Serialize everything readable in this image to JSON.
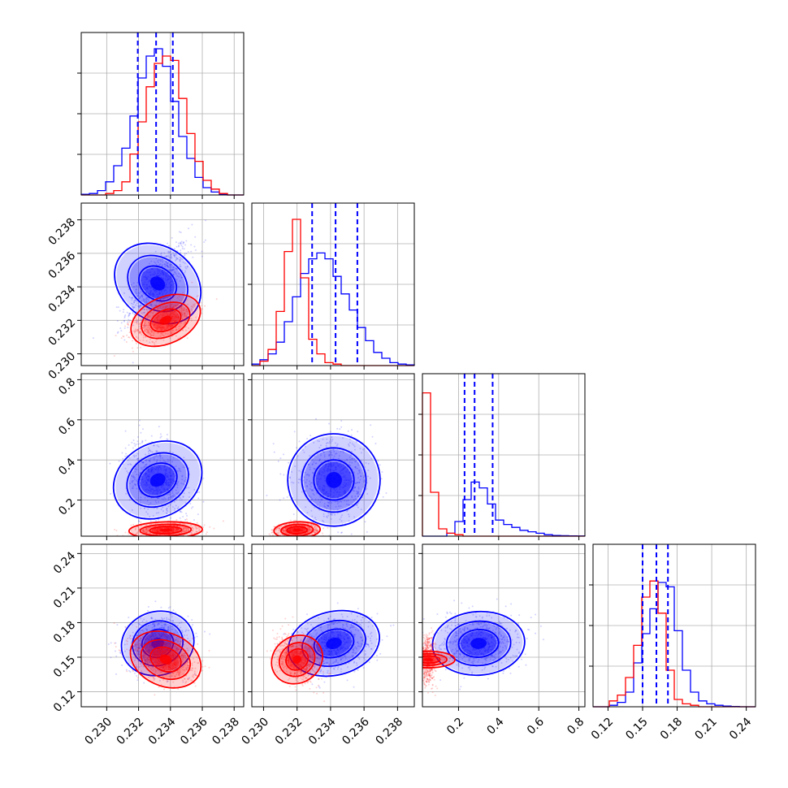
{
  "chart_data": {
    "type": "corner",
    "colors": {
      "series_a": "#0000ff",
      "series_b": "#ff0000"
    },
    "grid": true,
    "parameters": [
      {
        "ticks": [
          0.23,
          0.232,
          0.234,
          0.236,
          0.238
        ],
        "tick_labels": [
          "0.230",
          "0.232",
          "0.234",
          "0.236",
          "0.238"
        ],
        "range": [
          0.2284,
          0.2386
        ]
      },
      {
        "ticks": [
          0.23,
          0.232,
          0.234,
          0.236,
          0.238
        ],
        "tick_labels": [
          "0.230",
          "0.232",
          "0.234",
          "0.236",
          "0.238"
        ],
        "range": [
          0.2293,
          0.239
        ]
      },
      {
        "ticks": [
          0.2,
          0.4,
          0.6,
          0.8
        ],
        "tick_labels": [
          "0.2",
          "0.4",
          "0.6",
          "0.8"
        ],
        "range": [
          0.02,
          0.83
        ]
      },
      {
        "ticks": [
          0.12,
          0.15,
          0.18,
          0.21,
          0.24
        ],
        "tick_labels": [
          "0.12",
          "0.15",
          "0.18",
          "0.21",
          "0.24"
        ],
        "range": [
          0.107,
          0.248
        ]
      }
    ],
    "quantiles_series_a": [
      [
        0.23195,
        0.2331,
        0.23415
      ],
      [
        0.2329,
        0.2343,
        0.2356
      ],
      [
        0.23,
        0.28,
        0.37
      ],
      [
        0.15,
        0.162,
        0.172
      ]
    ],
    "series": [
      {
        "color": "blue",
        "marginals": [
          [
            0.005,
            0.01,
            0.03,
            0.09,
            0.2,
            0.32,
            0.54,
            0.8,
            0.95,
            1.0,
            0.88,
            0.64,
            0.4,
            0.25,
            0.12,
            0.05,
            0.02,
            0.005,
            0.0,
            0.0
          ],
          [
            0.01,
            0.04,
            0.08,
            0.16,
            0.3,
            0.47,
            0.63,
            0.73,
            0.77,
            0.73,
            0.61,
            0.49,
            0.38,
            0.26,
            0.17,
            0.09,
            0.05,
            0.02,
            0.01,
            0.005
          ],
          [
            0.0,
            0.0,
            0.0,
            0.02,
            0.1,
            0.25,
            0.37,
            0.33,
            0.22,
            0.11,
            0.08,
            0.06,
            0.04,
            0.03,
            0.02,
            0.01,
            0.005,
            0.003,
            0.002,
            0.001
          ],
          [
            0.0,
            0.0,
            0.01,
            0.03,
            0.1,
            0.3,
            0.5,
            0.67,
            0.85,
            0.82,
            0.52,
            0.25,
            0.1,
            0.04,
            0.02,
            0.01,
            0.005,
            0.002,
            0.0,
            0.0
          ]
        ],
        "mean": [
          0.2332,
          0.2342,
          0.3,
          0.162
        ],
        "sd": [
          0.001,
          0.0012,
          0.1,
          0.012
        ],
        "corr": [
          [
            1,
            0.75,
            -0.35,
            0.1
          ],
          [
            0.75,
            1,
            -0.05,
            0.2
          ],
          [
            -0.35,
            -0.05,
            1,
            0.05
          ],
          [
            0.1,
            0.2,
            0.05,
            1
          ]
        ]
      },
      {
        "color": "red",
        "marginals": [
          [
            0.0,
            0.0,
            0.0,
            0.01,
            0.03,
            0.09,
            0.28,
            0.5,
            0.74,
            0.9,
            0.95,
            0.92,
            0.66,
            0.42,
            0.23,
            0.1,
            0.04,
            0.01,
            0.0,
            0.0
          ],
          [
            0.0,
            0.03,
            0.11,
            0.37,
            0.78,
            1.0,
            0.6,
            0.18,
            0.08,
            0.02,
            0.01,
            0.0,
            0.0,
            0.0,
            0.0,
            0.0,
            0.0,
            0.0,
            0.0,
            0.0
          ],
          [
            0.98,
            0.3,
            0.05,
            0.02,
            0.01,
            0.0,
            0.0,
            0.0,
            0.0,
            0.0,
            0.0,
            0.0,
            0.0,
            0.0,
            0.0,
            0.0,
            0.0,
            0.0,
            0.0,
            0.0
          ],
          [
            0.0,
            0.0,
            0.04,
            0.08,
            0.2,
            0.42,
            0.75,
            0.86,
            0.64,
            0.25,
            0.05,
            0.02,
            0.01,
            0.0,
            0.0,
            0.0,
            0.0,
            0.0,
            0.0,
            0.0
          ]
        ],
        "mean": [
          0.2337,
          0.232,
          0.05,
          0.148
        ],
        "sd": [
          0.001,
          0.0006,
          0.018,
          0.01
        ],
        "corr": [
          [
            1,
            0.55,
            0.1,
            -0.35
          ],
          [
            0.55,
            1,
            0.1,
            -0.35
          ],
          [
            0.1,
            0.1,
            1,
            0.0
          ],
          [
            -0.35,
            -0.35,
            0.0,
            1
          ]
        ]
      }
    ]
  }
}
